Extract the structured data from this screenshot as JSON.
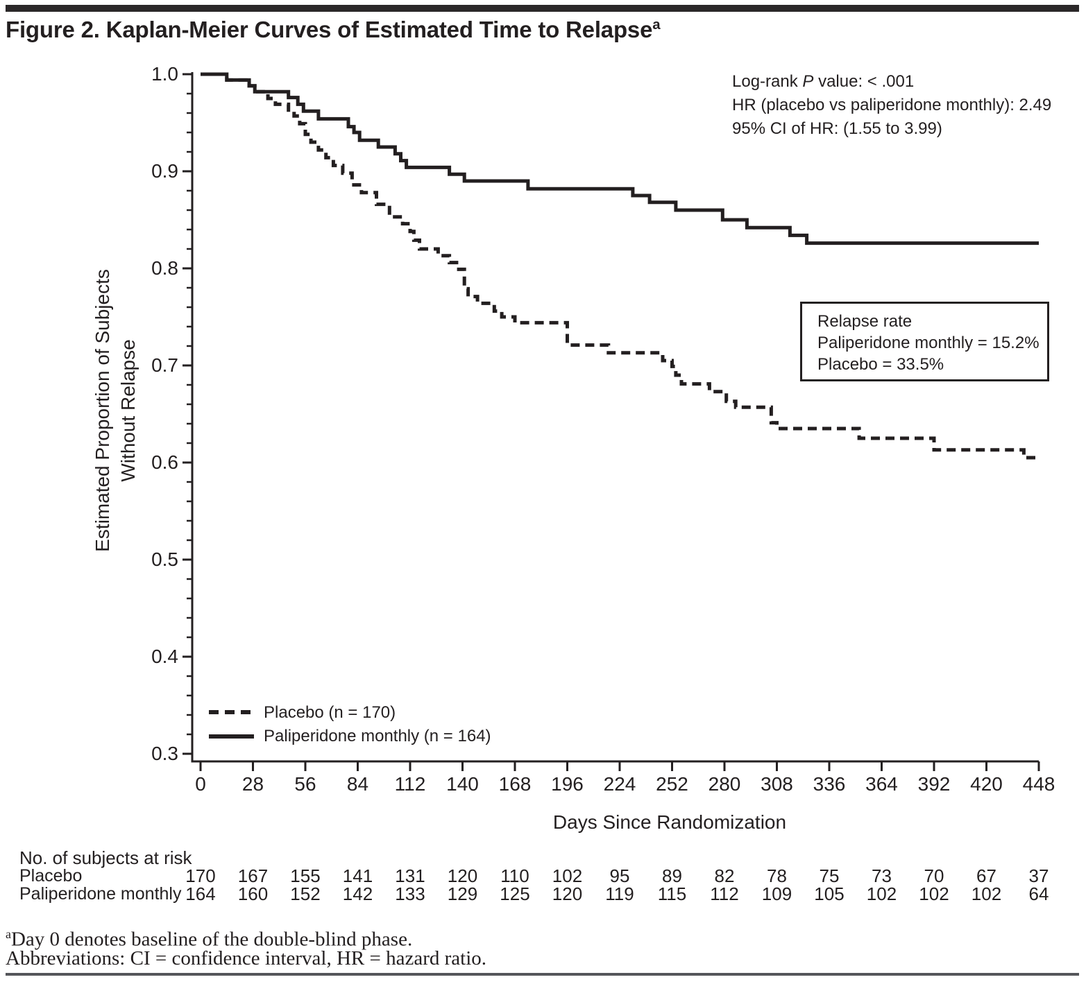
{
  "title": {
    "text": "Figure 2. Kaplan-Meier Curves of Estimated Time to Relapse",
    "superscript": "a"
  },
  "stats_annotation": {
    "line1_prefix": "Log-rank ",
    "line1_italic": "P",
    "line1_suffix": " value: < .001",
    "line2": "HR (placebo vs paliperidone monthly): 2.49",
    "line3": "95% CI of HR: (1.55 to 3.99)"
  },
  "relapse_box": {
    "line1": "Relapse rate",
    "line2": "Paliperidone monthly = 15.2%",
    "line3": "Placebo = 33.5%"
  },
  "chart_data": {
    "type": "line",
    "subtype": "kaplan-meier-step",
    "grid": "off",
    "legend_position": "inside-bottom-left",
    "x_axis": {
      "label": "Days Since Randomization",
      "range": [
        0,
        448
      ],
      "ticks": [
        0,
        28,
        56,
        84,
        112,
        140,
        168,
        196,
        224,
        252,
        280,
        308,
        336,
        364,
        392,
        420,
        448
      ]
    },
    "y_axis": {
      "label_line1": "Estimated Proportion of Subjects",
      "label_line2": "Without Relapse",
      "range": [
        0.3,
        1.0
      ],
      "ticks": [
        "1.0",
        "0.9",
        "0.8",
        "0.7",
        "0.6",
        "0.5",
        "0.4",
        "0.3"
      ],
      "minor_tick_interval": 0.02
    },
    "series": [
      {
        "name": "Placebo (n = 170)",
        "style": "dashed",
        "color": "#231f20",
        "steps": [
          [
            0,
            1.0
          ],
          [
            14,
            0.994
          ],
          [
            26,
            0.988
          ],
          [
            29,
            0.982
          ],
          [
            36,
            0.975
          ],
          [
            40,
            0.969
          ],
          [
            47,
            0.963
          ],
          [
            50,
            0.957
          ],
          [
            53,
            0.949
          ],
          [
            56,
            0.938
          ],
          [
            59,
            0.93
          ],
          [
            63,
            0.922
          ],
          [
            67,
            0.914
          ],
          [
            71,
            0.906
          ],
          [
            76,
            0.898
          ],
          [
            81,
            0.886
          ],
          [
            86,
            0.878
          ],
          [
            94,
            0.866
          ],
          [
            101,
            0.853
          ],
          [
            108,
            0.846
          ],
          [
            112,
            0.838
          ],
          [
            114,
            0.829
          ],
          [
            117,
            0.82
          ],
          [
            127,
            0.813
          ],
          [
            133,
            0.806
          ],
          [
            138,
            0.799
          ],
          [
            141,
            0.779
          ],
          [
            143,
            0.771
          ],
          [
            148,
            0.764
          ],
          [
            157,
            0.756
          ],
          [
            161,
            0.75
          ],
          [
            168,
            0.744
          ],
          [
            196,
            0.721
          ],
          [
            218,
            0.713
          ],
          [
            247,
            0.705
          ],
          [
            252,
            0.699
          ],
          [
            254,
            0.69
          ],
          [
            257,
            0.681
          ],
          [
            272,
            0.673
          ],
          [
            281,
            0.663
          ],
          [
            286,
            0.657
          ],
          [
            305,
            0.641
          ],
          [
            308,
            0.635
          ],
          [
            352,
            0.625
          ],
          [
            392,
            0.613
          ],
          [
            440,
            0.605
          ]
        ]
      },
      {
        "name": "Paliperidone monthly (n = 164)",
        "style": "solid",
        "color": "#231f20",
        "steps": [
          [
            0,
            1.0
          ],
          [
            14,
            0.994
          ],
          [
            26,
            0.988
          ],
          [
            29,
            0.982
          ],
          [
            47,
            0.976
          ],
          [
            52,
            0.969
          ],
          [
            55,
            0.962
          ],
          [
            63,
            0.954
          ],
          [
            79,
            0.946
          ],
          [
            82,
            0.94
          ],
          [
            85,
            0.932
          ],
          [
            95,
            0.925
          ],
          [
            104,
            0.918
          ],
          [
            107,
            0.911
          ],
          [
            110,
            0.904
          ],
          [
            133,
            0.897
          ],
          [
            141,
            0.89
          ],
          [
            175,
            0.882
          ],
          [
            231,
            0.875
          ],
          [
            240,
            0.868
          ],
          [
            254,
            0.86
          ],
          [
            279,
            0.85
          ],
          [
            292,
            0.842
          ],
          [
            315,
            0.834
          ],
          [
            324,
            0.826
          ]
        ]
      }
    ]
  },
  "risk_table": {
    "title": "No. of subjects at risk",
    "rows": [
      {
        "label": "Placebo",
        "values": [
          170,
          167,
          155,
          141,
          131,
          120,
          110,
          102,
          95,
          89,
          82,
          78,
          75,
          73,
          70,
          67,
          37
        ]
      },
      {
        "label": "Paliperidone monthly",
        "values": [
          164,
          160,
          152,
          142,
          133,
          129,
          125,
          120,
          119,
          115,
          112,
          109,
          105,
          102,
          102,
          102,
          64
        ]
      }
    ]
  },
  "footnotes": {
    "line1_superscript": "a",
    "line1_text": "Day 0 denotes baseline of the double-blind phase.",
    "line2": "Abbreviations: CI = confidence interval, HR = hazard ratio."
  },
  "colors": {
    "ink": "#231f20",
    "top_bar": "#2b2829",
    "bottom_rule": "#55565a"
  }
}
